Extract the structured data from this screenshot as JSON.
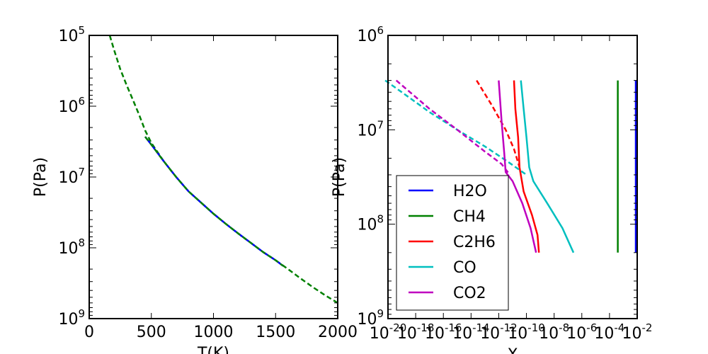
{
  "colors": {
    "H2O": "#0000ff",
    "CH4": "#008000",
    "C2H6": "#ff0000",
    "CO": "#00bfbf",
    "CO2": "#bf00bf"
  },
  "chart_data": [
    {
      "type": "line",
      "xlabel": "T(K)",
      "ylabel": "P(Pa)",
      "xlim": [
        0,
        2000
      ],
      "ylim": [
        100000,
        1000000000
      ],
      "yscale": "log",
      "y_inverted": true,
      "xticks": [
        0,
        500,
        1000,
        1500,
        2000
      ],
      "yticks": [
        {
          "base": "10",
          "exp": "5",
          "value": 100000
        },
        {
          "base": "10",
          "exp": "6",
          "value": 1000000
        },
        {
          "base": "10",
          "exp": "7",
          "value": 10000000
        },
        {
          "base": "10",
          "exp": "8",
          "value": 100000000
        },
        {
          "base": "10",
          "exp": "9",
          "value": 1000000000
        }
      ],
      "series": [
        {
          "style": "dashed",
          "color": "#008000",
          "points": [
            [
              165,
              100000
            ],
            [
              200,
              160000
            ],
            [
              250,
              300000
            ],
            [
              300,
              500000
            ],
            [
              350,
              800000
            ],
            [
              400,
              1300000
            ],
            [
              450,
              2200000
            ],
            [
              500,
              3300000
            ],
            [
              600,
              6000000
            ],
            [
              700,
              10000000
            ],
            [
              800,
              16000000
            ],
            [
              900,
              23000000
            ],
            [
              1000,
              33000000
            ],
            [
              1100,
              46000000
            ],
            [
              1200,
              63000000
            ],
            [
              1300,
              85000000
            ],
            [
              1400,
              115000000
            ],
            [
              1500,
              150000000
            ],
            [
              1600,
              200000000
            ],
            [
              1700,
              270000000
            ],
            [
              1800,
              360000000
            ],
            [
              1900,
              470000000
            ],
            [
              2000,
              600000000
            ]
          ]
        },
        {
          "style": "solid",
          "color": "#0000ff",
          "points": [
            [
              450,
              2700000
            ],
            [
              500,
              3500000
            ],
            [
              600,
              6000000
            ],
            [
              700,
              10000000
            ],
            [
              800,
              16000000
            ],
            [
              900,
              23000000
            ],
            [
              1000,
              33000000
            ],
            [
              1100,
              46000000
            ],
            [
              1200,
              63000000
            ],
            [
              1300,
              85000000
            ],
            [
              1400,
              115000000
            ],
            [
              1500,
              150000000
            ],
            [
              1560,
              180000000
            ]
          ]
        },
        {
          "style": "dashed",
          "color": "#008000",
          "points": [
            [
              450,
              2700000
            ],
            [
              500,
              3500000
            ],
            [
              600,
              6000000
            ],
            [
              700,
              10000000
            ],
            [
              800,
              16000000
            ],
            [
              900,
              23000000
            ],
            [
              1000,
              33000000
            ],
            [
              1100,
              46000000
            ],
            [
              1200,
              63000000
            ],
            [
              1300,
              85000000
            ],
            [
              1400,
              115000000
            ],
            [
              1500,
              150000000
            ],
            [
              1560,
              180000000
            ]
          ]
        }
      ]
    },
    {
      "type": "line",
      "xlabel": "X",
      "ylabel": "P(Pa)",
      "xlim": [
        -20,
        -2
      ],
      "ylim": [
        1000000,
        1000000000
      ],
      "xscale": "log",
      "yscale": "log",
      "y_inverted": true,
      "xticks": [
        {
          "base": "10",
          "exp": "-20",
          "value": -20
        },
        {
          "base": "10",
          "exp": "-18",
          "value": -18
        },
        {
          "base": "10",
          "exp": "-16",
          "value": -16
        },
        {
          "base": "10",
          "exp": "-14",
          "value": -14
        },
        {
          "base": "10",
          "exp": "-12",
          "value": -12
        },
        {
          "base": "10",
          "exp": "-10",
          "value": -10
        },
        {
          "base": "10",
          "exp": "-8",
          "value": -8
        },
        {
          "base": "10",
          "exp": "-6",
          "value": -6
        },
        {
          "base": "10",
          "exp": "-4",
          "value": -4
        },
        {
          "base": "10",
          "exp": "-2",
          "value": -2
        }
      ],
      "yticks": [
        {
          "base": "10",
          "exp": "6",
          "value": 1000000
        },
        {
          "base": "10",
          "exp": "7",
          "value": 10000000
        },
        {
          "base": "10",
          "exp": "8",
          "value": 100000000
        },
        {
          "base": "10",
          "exp": "9",
          "value": 1000000000
        }
      ],
      "legend": {
        "position": "lower-left",
        "entries": [
          {
            "name": "H2O",
            "color": "#0000ff"
          },
          {
            "name": "CH4",
            "color": "#008000"
          },
          {
            "name": "C2H6",
            "color": "#ff0000"
          },
          {
            "name": "CO",
            "color": "#00bfbf"
          },
          {
            "name": "CO2",
            "color": "#bf00bf"
          }
        ]
      },
      "series": [
        {
          "name": "H2O",
          "style": "solid",
          "color": "#0000ff",
          "points": [
            [
              -2.1,
              3000000
            ],
            [
              -2.1,
              200000000
            ]
          ]
        },
        {
          "name": "CH4",
          "style": "solid",
          "color": "#008000",
          "points": [
            [
              -3.4,
              3000000
            ],
            [
              -3.4,
              200000000
            ]
          ]
        },
        {
          "name": "C2H6",
          "style": "dashed",
          "color": "#ff0000",
          "points": [
            [
              -13.6,
              3000000
            ],
            [
              -12.5,
              5500000
            ],
            [
              -11.5,
              10000000
            ],
            [
              -10.9,
              16000000
            ],
            [
              -10.5,
              25000000
            ]
          ]
        },
        {
          "name": "C2H6",
          "style": "solid",
          "color": "#ff0000",
          "points": [
            [
              -10.9,
              3000000
            ],
            [
              -10.8,
              6000000
            ],
            [
              -10.6,
              12000000
            ],
            [
              -10.5,
              25000000
            ],
            [
              -10.2,
              45000000
            ],
            [
              -9.6,
              80000000
            ],
            [
              -9.2,
              130000000
            ],
            [
              -9.1,
              200000000
            ]
          ]
        },
        {
          "name": "CO",
          "style": "dashed",
          "color": "#00bfbf",
          "points": [
            [
              -20.2,
              3000000
            ],
            [
              -19,
              4000000
            ],
            [
              -17,
              6500000
            ],
            [
              -15,
              10000000
            ],
            [
              -13,
              15000000
            ],
            [
              -11.3,
              22000000
            ],
            [
              -10,
              30000000
            ]
          ]
        },
        {
          "name": "CO",
          "style": "solid",
          "color": "#00bfbf",
          "points": [
            [
              -10.4,
              3000000
            ],
            [
              -10.2,
              6000000
            ],
            [
              -10,
              12000000
            ],
            [
              -9.8,
              25000000
            ],
            [
              -9.5,
              35000000
            ],
            [
              -8.5,
              60000000
            ],
            [
              -7.4,
              110000000
            ],
            [
              -6.6,
              200000000
            ]
          ]
        },
        {
          "name": "CO2",
          "style": "dashed",
          "color": "#bf00bf",
          "points": [
            [
              -19.4,
              3000000
            ],
            [
              -17,
              6000000
            ],
            [
              -15,
              10000000
            ],
            [
              -13,
              17000000
            ],
            [
              -11.8,
              23000000
            ],
            [
              -11.2,
              30000000
            ]
          ]
        },
        {
          "name": "CO2",
          "style": "solid",
          "color": "#bf00bf",
          "points": [
            [
              -12,
              3000000
            ],
            [
              -11.8,
              8000000
            ],
            [
              -11.6,
              18000000
            ],
            [
              -11.5,
              28000000
            ],
            [
              -11,
              35000000
            ],
            [
              -10.3,
              60000000
            ],
            [
              -9.7,
              110000000
            ],
            [
              -9.3,
              200000000
            ]
          ]
        }
      ]
    }
  ]
}
